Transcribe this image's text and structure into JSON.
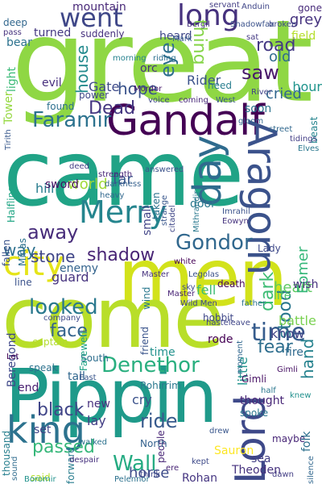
{
  "words": [
    {
      "text": "great",
      "color": "#8fd744"
    },
    {
      "text": "came",
      "color": "#20a386"
    },
    {
      "text": "men",
      "color": "#d2e21b"
    },
    {
      "text": "come",
      "color": "#b8de29"
    },
    {
      "text": "Pippin",
      "color": "#1f9a8a"
    },
    {
      "text": "Gandalf",
      "color": "#440154"
    },
    {
      "text": "Aragorn",
      "color": "#3b528b"
    },
    {
      "text": "Lord",
      "color": "#3e4989"
    },
    {
      "text": "king",
      "color": "#2c728e"
    },
    {
      "text": "day",
      "color": "#2f6b8e"
    },
    {
      "text": "Merry",
      "color": "#25858e"
    },
    {
      "text": "went",
      "color": "#3f4788"
    },
    {
      "text": "long",
      "color": "#46327e"
    },
    {
      "text": "Faramir",
      "color": "#2c728e"
    },
    {
      "text": "Gondor",
      "color": "#31688e"
    },
    {
      "text": "city",
      "color": "#e5e419"
    },
    {
      "text": "time",
      "color": "#365c8d"
    },
    {
      "text": "Denethor",
      "color": "#29af7f"
    },
    {
      "text": "looked",
      "color": "#2a788e"
    },
    {
      "text": "away",
      "color": "#472c7a"
    },
    {
      "text": "face",
      "color": "#33638d"
    },
    {
      "text": "road",
      "color": "#443983"
    },
    {
      "text": "saw",
      "color": "#48186a"
    },
    {
      "text": "eye",
      "color": "#2e6f8e"
    },
    {
      "text": "dark",
      "color": "#3dbc74"
    },
    {
      "text": "stood",
      "color": "#2a778e"
    },
    {
      "text": "hand",
      "color": "#26828e"
    },
    {
      "text": "thing",
      "color": "#86d549"
    },
    {
      "text": "Dead",
      "color": "#453781"
    },
    {
      "text": "hope",
      "color": "#3a538b"
    },
    {
      "text": "shadow",
      "color": "#482475"
    },
    {
      "text": "stone",
      "color": "#404688"
    },
    {
      "text": "way",
      "color": "#2d708e"
    },
    {
      "text": "black",
      "color": "#404588"
    },
    {
      "text": "passed",
      "color": "#35b779"
    },
    {
      "text": "Wall",
      "color": "#25ab82"
    },
    {
      "text": "ride",
      "color": "#375a8c"
    },
    {
      "text": "fear",
      "color": "#2e6e8e"
    },
    {
      "text": "old",
      "color": "#2f6c8e"
    },
    {
      "text": "grey",
      "color": "#46337f"
    },
    {
      "text": "heart",
      "color": "#5ec962"
    },
    {
      "text": "know",
      "color": "#414487"
    },
    {
      "text": "cried",
      "color": "#31688e"
    },
    {
      "text": "Gate",
      "color": "#3e4a89"
    },
    {
      "text": "house",
      "color": "#238a8d"
    },
    {
      "text": "hill",
      "color": "#287c8e"
    },
    {
      "text": "mountain",
      "color": "#482878"
    },
    {
      "text": "light",
      "color": "#3aba76"
    },
    {
      "text": "world",
      "color": "#a0da39"
    },
    {
      "text": "sword",
      "color": "#471063"
    },
    {
      "text": "hour",
      "color": "#1f948c"
    },
    {
      "text": "field",
      "color": "#b5de2b"
    },
    {
      "text": "Rider",
      "color": "#3b528b"
    },
    {
      "text": "horse",
      "color": "#3e4c8a"
    },
    {
      "text": "Rohan",
      "color": "#453581"
    },
    {
      "text": "battle",
      "color": "#7ad151"
    },
    {
      "text": "time",
      "color": "#21918c"
    },
    {
      "text": "little",
      "color": "#20928c"
    },
    {
      "text": "Eomer",
      "color": "#35b779"
    },
    {
      "text": "thought",
      "color": "#482677"
    },
    {
      "text": "soon",
      "color": "#2c738e"
    },
    {
      "text": "far",
      "color": "#39568c"
    },
    {
      "text": "enemy",
      "color": "#33638d"
    },
    {
      "text": "door",
      "color": "#2a788e"
    },
    {
      "text": "fell",
      "color": "#3dbc74"
    },
    {
      "text": "death",
      "color": "#46075a"
    },
    {
      "text": "Beregond",
      "color": "#3f4889"
    },
    {
      "text": "Sauron",
      "color": "#fde725"
    },
    {
      "text": "Theoden",
      "color": "#46327e"
    },
    {
      "text": "cry",
      "color": "#3b528b"
    },
    {
      "text": "fire",
      "color": "#306a8e"
    },
    {
      "text": "Gimli",
      "color": "#471164"
    },
    {
      "text": "rode",
      "color": "#440154"
    },
    {
      "text": "gone",
      "color": "#472a7a"
    },
    {
      "text": "need",
      "color": "#287d8e"
    },
    {
      "text": "speak",
      "color": "#2c728e"
    },
    {
      "text": "said",
      "color": "#b5de2b"
    },
    {
      "text": "deep",
      "color": "#31678e"
    },
    {
      "text": "life",
      "color": "#4ec36b"
    },
    {
      "text": "lay",
      "color": "#433e85"
    },
    {
      "text": "spoke",
      "color": "#2a768e"
    },
    {
      "text": "end",
      "color": "#481f70"
    },
    {
      "text": "new",
      "color": "#46307e"
    },
    {
      "text": "thousand",
      "color": "#277f8e"
    },
    {
      "text": "Lady",
      "color": "#3e4989"
    },
    {
      "text": "morning",
      "color": "#26828e"
    },
    {
      "text": "Mordor",
      "color": "#481a6c"
    },
    {
      "text": "River",
      "color": "#414487"
    },
    {
      "text": "evil",
      "color": "#472f7d"
    },
    {
      "text": "power",
      "color": "#3f4788"
    },
    {
      "text": "found",
      "color": "#2d708e"
    },
    {
      "text": "guard",
      "color": "#46337f"
    },
    {
      "text": "line",
      "color": "#3b528b"
    },
    {
      "text": "small",
      "color": "#414487"
    },
    {
      "text": "taken",
      "color": "#2c728e"
    },
    {
      "text": "heavy",
      "color": "#31688e"
    },
    {
      "text": "people",
      "color": "#482576"
    },
    {
      "text": "Halfling",
      "color": "#21a685"
    },
    {
      "text": "Tower",
      "color": "#95d840"
    },
    {
      "text": "orc",
      "color": "#46337f"
    },
    {
      "text": "fallen",
      "color": "#3b528b"
    },
    {
      "text": "Minas",
      "color": "#2c728e"
    },
    {
      "text": "Tirith",
      "color": "#38598c"
    },
    {
      "text": "heard",
      "color": "#3f4788"
    },
    {
      "text": "turned",
      "color": "#453882"
    },
    {
      "text": "suddenly",
      "color": "#46307e"
    },
    {
      "text": "beast",
      "color": "#25858e"
    },
    {
      "text": "wind",
      "color": "#2a788e"
    },
    {
      "text": "white",
      "color": "#440154"
    },
    {
      "text": "sky",
      "color": "#3e4a89"
    },
    {
      "text": "wish",
      "color": "#46327e"
    },
    {
      "text": "sea",
      "color": "#433e85"
    },
    {
      "text": "North",
      "color": "#34618d"
    },
    {
      "text": "South",
      "color": "#2e6e8e"
    },
    {
      "text": "captain",
      "color": "#b2dd2d"
    },
    {
      "text": "maybe",
      "color": "#482677"
    },
    {
      "text": "think",
      "color": "#3f4889"
    },
    {
      "text": "walked",
      "color": "#2c728e"
    },
    {
      "text": "Boromir",
      "color": "#20928c"
    },
    {
      "text": "sound",
      "color": "#2f6c8e"
    },
    {
      "text": "forward",
      "color": "#287d8e"
    },
    {
      "text": "set",
      "color": "#414487"
    },
    {
      "text": "tall",
      "color": "#31678e"
    },
    {
      "text": "pass",
      "color": "#46327e"
    },
    {
      "text": "Mark",
      "color": "#365c8d"
    },
    {
      "text": "sat",
      "color": "#443983"
    },
    {
      "text": "voice",
      "color": "#3f4788"
    },
    {
      "text": "West",
      "color": "#39568c"
    },
    {
      "text": "coming",
      "color": "#482878"
    },
    {
      "text": "riding",
      "color": "#2d708e"
    },
    {
      "text": "gloom",
      "color": "#31688e"
    },
    {
      "text": "answered",
      "color": "#3b528b"
    },
    {
      "text": "darkness",
      "color": "#34608d"
    },
    {
      "text": "deed",
      "color": "#433e85"
    },
    {
      "text": "strength",
      "color": "#482576"
    },
    {
      "text": "Elves",
      "color": "#2a778e"
    },
    {
      "text": "Gimli",
      "color": "#471164"
    },
    {
      "text": "Legolas",
      "color": "#3b528b"
    },
    {
      "text": "Master",
      "color": "#46327e"
    },
    {
      "text": "friend",
      "color": "#3a548c"
    },
    {
      "text": "hobbit",
      "color": "#3f4788"
    },
    {
      "text": "father",
      "color": "#2c738e"
    },
    {
      "text": "moment",
      "color": "#31678e"
    },
    {
      "text": "Rohirrim",
      "color": "#2a788e"
    },
    {
      "text": "Let",
      "color": "#440154"
    },
    {
      "text": "East",
      "color": "#39568c"
    },
    {
      "text": "hasteleave",
      "color": "#404688"
    },
    {
      "text": "Farewell",
      "color": "#20a386"
    },
    {
      "text": "company",
      "color": "#3e4a89"
    },
    {
      "text": "despair",
      "color": "#46307e"
    },
    {
      "text": "folk",
      "color": "#2d708e"
    },
    {
      "text": "knew",
      "color": "#21908d"
    },
    {
      "text": "Anduin",
      "color": "#404688"
    },
    {
      "text": "servant",
      "color": "#433e85"
    },
    {
      "text": "Shadowfax",
      "color": "#3b528b"
    },
    {
      "text": "Bergil",
      "color": "#46327e"
    },
    {
      "text": "bear",
      "color": "#2c728e"
    },
    {
      "text": "broken",
      "color": "#3e4989"
    },
    {
      "text": "street",
      "color": "#31688e"
    },
    {
      "text": "tidings",
      "color": "#433e85"
    },
    {
      "text": "strange",
      "color": "#39568c"
    },
    {
      "text": "Mithrandir",
      "color": "#2a788e"
    },
    {
      "text": "citadel",
      "color": "#3f4788"
    },
    {
      "text": "Master",
      "color": "#482475"
    },
    {
      "text": "Imrahil",
      "color": "#3b528b"
    },
    {
      "text": "Eowyn",
      "color": "#46337f"
    },
    {
      "text": "Wild Men",
      "color": "#404688"
    },
    {
      "text": "Pelennor",
      "color": "#2c728e"
    },
    {
      "text": "silence",
      "color": "#31678e"
    },
    {
      "text": "dawn",
      "color": "#433e85"
    },
    {
      "text": "drew",
      "color": "#39568c"
    },
    {
      "text": "half",
      "color": "#2a778e"
    },
    {
      "text": "ere",
      "color": "#482576"
    },
    {
      "text": "kept",
      "color": "#3e4a89"
    }
  ]
}
